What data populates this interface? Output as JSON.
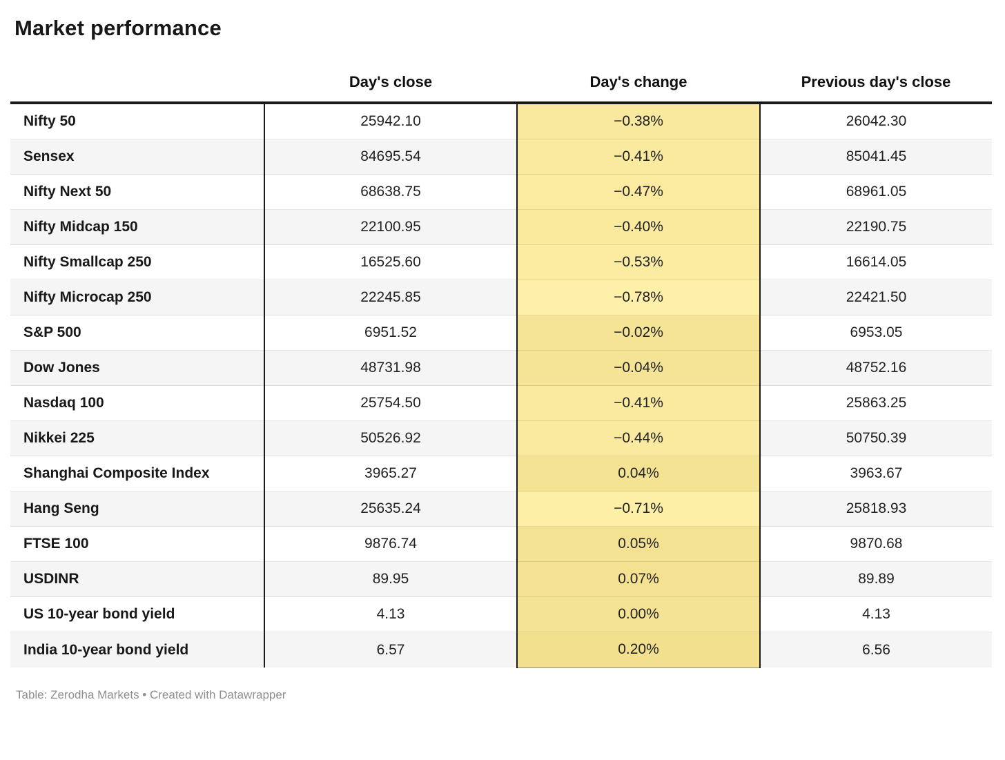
{
  "page": {
    "title": "Market performance",
    "footer": "Table: Zerodha Markets • Created with Datawrapper"
  },
  "chart_data": {
    "type": "table",
    "title": "Market performance",
    "columns": [
      "",
      "Day's close",
      "Day's change",
      "Previous day's close"
    ],
    "rows": [
      {
        "label": "Nifty 50",
        "close": "25942.10",
        "change": "−0.38%",
        "change_value": -0.38,
        "prev_close": "26042.30"
      },
      {
        "label": "Sensex",
        "close": "84695.54",
        "change": "−0.41%",
        "change_value": -0.41,
        "prev_close": "85041.45"
      },
      {
        "label": "Nifty Next 50",
        "close": "68638.75",
        "change": "−0.47%",
        "change_value": -0.47,
        "prev_close": "68961.05"
      },
      {
        "label": "Nifty Midcap 150",
        "close": "22100.95",
        "change": "−0.40%",
        "change_value": -0.4,
        "prev_close": "22190.75"
      },
      {
        "label": "Nifty Smallcap 250",
        "close": "16525.60",
        "change": "−0.53%",
        "change_value": -0.53,
        "prev_close": "16614.05"
      },
      {
        "label": "Nifty Microcap 250",
        "close": "22245.85",
        "change": "−0.78%",
        "change_value": -0.78,
        "prev_close": "22421.50"
      },
      {
        "label": "S&P 500",
        "close": "6951.52",
        "change": "−0.02%",
        "change_value": -0.02,
        "prev_close": "6953.05"
      },
      {
        "label": "Dow Jones",
        "close": "48731.98",
        "change": "−0.04%",
        "change_value": -0.04,
        "prev_close": "48752.16"
      },
      {
        "label": "Nasdaq 100",
        "close": "25754.50",
        "change": "−0.41%",
        "change_value": -0.41,
        "prev_close": "25863.25"
      },
      {
        "label": "Nikkei 225",
        "close": "50526.92",
        "change": "−0.44%",
        "change_value": -0.44,
        "prev_close": "50750.39"
      },
      {
        "label": "Shanghai Composite Index",
        "close": "3965.27",
        "change": "0.04%",
        "change_value": 0.04,
        "prev_close": "3963.67"
      },
      {
        "label": "Hang Seng",
        "close": "25635.24",
        "change": "−0.71%",
        "change_value": -0.71,
        "prev_close": "25818.93"
      },
      {
        "label": "FTSE 100",
        "close": "9876.74",
        "change": "0.05%",
        "change_value": 0.05,
        "prev_close": "9870.68"
      },
      {
        "label": "USDINR",
        "close": "89.95",
        "change": "0.07%",
        "change_value": 0.07,
        "prev_close": "89.89"
      },
      {
        "label": "US 10-year bond yield",
        "close": "4.13",
        "change": "0.00%",
        "change_value": 0.0,
        "prev_close": "4.13"
      },
      {
        "label": "India 10-year bond yield",
        "close": "6.57",
        "change": "0.20%",
        "change_value": 0.2,
        "prev_close": "6.56"
      }
    ],
    "heatmap": {
      "column": "Day's change",
      "min_value": -0.78,
      "max_value": 0.2,
      "min_color": "#FEF0A8",
      "max_color": "#F2E08F"
    },
    "layout": {
      "zebra_stripe_color": "#F5F5F5",
      "rule_color": "#1A1A1A",
      "legend_position": "none",
      "grid": "horizontal-separators"
    }
  }
}
